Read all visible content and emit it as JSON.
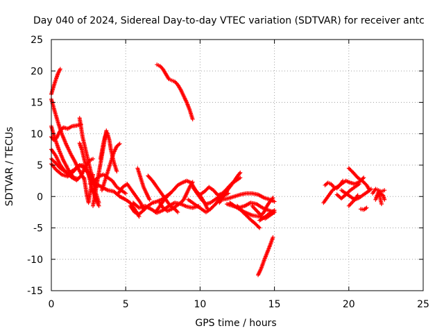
{
  "chart_data": {
    "type": "scatter",
    "title": "Day 040 of 2024, Sidereal Day-to-day VTEC variation (SDTVAR) for receiver antc",
    "xlabel": "GPS time / hours",
    "ylabel": "SDTVAR / TECUs",
    "xlim": [
      0,
      25
    ],
    "ylim": [
      -15,
      25
    ],
    "xticks": [
      0,
      5,
      10,
      15,
      20,
      25
    ],
    "yticks": [
      -15,
      -10,
      -5,
      0,
      5,
      10,
      15,
      20,
      25
    ],
    "xtick_labels": [
      "0",
      "5",
      "10",
      "15",
      "20",
      "25"
    ],
    "ytick_labels": [
      "-15",
      "-10",
      "-5",
      "0",
      "5",
      "10",
      "15",
      "20",
      "25"
    ],
    "grid": true,
    "marker": "plus",
    "color": "#ff0000",
    "series": [
      {
        "name": "track-01",
        "x": [
          0.0,
          0.15,
          0.3,
          0.45,
          0.6
        ],
        "y": [
          16.3,
          17.5,
          18.6,
          19.6,
          20.3
        ]
      },
      {
        "name": "track-02",
        "x": [
          0.0,
          0.2,
          0.45,
          0.7,
          1.0,
          1.3,
          1.6,
          1.8,
          2.0,
          2.2
        ],
        "y": [
          15.5,
          13.8,
          11.8,
          10.0,
          8.3,
          6.8,
          5.5,
          4.5,
          3.6,
          2.8
        ]
      },
      {
        "name": "track-03",
        "x": [
          0.0,
          0.2,
          0.5,
          0.8,
          1.2,
          1.5,
          1.8
        ],
        "y": [
          11.2,
          9.5,
          7.5,
          5.8,
          4.0,
          3.0,
          2.8
        ]
      },
      {
        "name": "track-04",
        "x": [
          0.0,
          0.15,
          0.35,
          0.55,
          0.8,
          1.1,
          1.4,
          1.7,
          2.0
        ],
        "y": [
          9.5,
          9.0,
          9.3,
          10.3,
          11.0,
          10.8,
          11.2,
          11.3,
          11.5
        ]
      },
      {
        "name": "track-05",
        "x": [
          0.0,
          0.3,
          0.6,
          1.0,
          1.4,
          1.7,
          2.0,
          2.3,
          2.6,
          2.8
        ],
        "y": [
          7.5,
          6.5,
          5.0,
          3.8,
          3.0,
          2.6,
          3.3,
          4.8,
          5.8,
          6.0
        ]
      },
      {
        "name": "track-06",
        "x": [
          0.0,
          0.3,
          0.6,
          0.9,
          1.2,
          1.5,
          1.8,
          2.1,
          2.4,
          2.7,
          3.0
        ],
        "y": [
          6.0,
          5.3,
          4.5,
          4.0,
          3.8,
          4.2,
          4.8,
          5.0,
          4.0,
          2.5,
          1.5
        ]
      },
      {
        "name": "track-07",
        "x": [
          0.0,
          0.3,
          0.7,
          1.1,
          1.5,
          1.9,
          2.3,
          2.7,
          3.0
        ],
        "y": [
          5.2,
          4.3,
          3.5,
          3.2,
          4.0,
          5.0,
          4.5,
          3.2,
          2.0
        ]
      },
      {
        "name": "track-08",
        "x": [
          1.9,
          2.0,
          2.1,
          2.25,
          2.4,
          2.55,
          2.7,
          2.85,
          3.0,
          3.2
        ],
        "y": [
          12.5,
          11.0,
          9.5,
          8.0,
          6.5,
          5.0,
          3.5,
          2.0,
          0.5,
          -1.0
        ]
      },
      {
        "name": "track-09",
        "x": [
          1.9,
          2.05,
          2.2,
          2.35,
          2.5,
          2.65,
          2.8,
          3.0,
          3.2
        ],
        "y": [
          8.5,
          7.5,
          6.0,
          4.8,
          3.5,
          2.0,
          0.8,
          -0.5,
          -1.5
        ]
      },
      {
        "name": "track-10",
        "x": [
          2.2,
          2.3,
          2.4,
          2.5,
          2.6,
          2.7,
          2.8
        ],
        "y": [
          3.0,
          1.5,
          0.0,
          -1.0,
          0.5,
          2.0,
          3.5
        ]
      },
      {
        "name": "track-11",
        "x": [
          2.8,
          2.95,
          3.1,
          3.25,
          3.4,
          3.55,
          3.7
        ],
        "y": [
          -1.5,
          0.5,
          2.5,
          4.5,
          6.5,
          8.5,
          10.5
        ]
      },
      {
        "name": "track-12",
        "x": [
          3.3,
          3.4,
          3.5,
          3.6,
          3.75,
          3.9,
          4.0,
          4.2,
          4.4
        ],
        "y": [
          6.0,
          7.2,
          8.5,
          9.5,
          10.2,
          9.0,
          7.5,
          5.5,
          4.0
        ]
      },
      {
        "name": "track-13",
        "x": [
          2.6,
          2.9,
          3.2,
          3.5,
          3.8,
          4.1,
          4.4,
          4.7,
          5.0
        ],
        "y": [
          2.0,
          2.5,
          3.2,
          3.5,
          3.0,
          2.5,
          1.5,
          1.0,
          0.5
        ]
      },
      {
        "name": "track-14",
        "x": [
          3.4,
          3.6,
          3.8,
          4.0,
          4.2,
          4.4,
          4.6
        ],
        "y": [
          1.0,
          2.5,
          4.0,
          5.5,
          7.0,
          8.0,
          8.4
        ]
      },
      {
        "name": "track-15",
        "x": [
          2.2,
          2.6,
          3.0,
          3.4,
          3.8,
          4.2,
          4.6,
          5.0,
          5.3,
          5.6,
          5.9
        ],
        "y": [
          4.5,
          3.5,
          2.0,
          1.5,
          1.0,
          0.8,
          0.0,
          -0.5,
          -1.0,
          -2.0,
          -3.2
        ]
      },
      {
        "name": "track-16",
        "x": [
          4.5,
          4.8,
          5.1,
          5.4,
          5.7,
          6.0,
          6.2
        ],
        "y": [
          0.5,
          1.5,
          2.0,
          1.0,
          0.0,
          -1.0,
          -2.0
        ]
      },
      {
        "name": "track-17",
        "x": [
          5.3,
          5.6,
          5.9,
          6.2,
          6.5,
          6.8,
          7.1,
          7.4,
          7.7,
          8.0
        ],
        "y": [
          -1.5,
          -2.5,
          -2.8,
          -2.2,
          -1.5,
          -1.0,
          -0.8,
          -0.5,
          0.0,
          0.5
        ]
      },
      {
        "name": "track-18",
        "x": [
          5.8,
          6.0,
          6.2,
          6.4,
          6.6
        ],
        "y": [
          4.5,
          3.0,
          1.5,
          0.5,
          -0.5
        ]
      },
      {
        "name": "track-19",
        "x": [
          5.5,
          5.9,
          6.3,
          6.7,
          7.1,
          7.5,
          7.9,
          8.3,
          8.7,
          9.1,
          9.5,
          9.9
        ],
        "y": [
          -1.0,
          -1.8,
          -1.5,
          -2.0,
          -2.6,
          -2.2,
          -1.5,
          -1.0,
          -1.2,
          -1.6,
          -1.8,
          -1.5
        ]
      },
      {
        "name": "track-20",
        "x": [
          6.5,
          6.8,
          7.1,
          7.4,
          7.7,
          8.0,
          8.3,
          8.5
        ],
        "y": [
          3.3,
          2.5,
          1.5,
          0.5,
          -0.5,
          -1.5,
          -2.0,
          -2.5
        ]
      },
      {
        "name": "track-21",
        "x": [
          7.0,
          7.3,
          7.6,
          7.9,
          8.2,
          8.5,
          8.8,
          9.1,
          9.4,
          9.7,
          10.0,
          10.3,
          10.5
        ],
        "y": [
          -2.5,
          -1.5,
          -0.5,
          0.3,
          1.0,
          1.8,
          2.2,
          2.5,
          2.2,
          1.0,
          0.2,
          -1.0,
          -2.0
        ]
      },
      {
        "name": "track-22",
        "x": [
          7.3,
          7.5,
          7.8,
          8.1,
          8.4,
          8.7,
          8.9,
          9.1,
          9.3,
          9.5
        ],
        "y": [
          -1.0,
          -1.8,
          -2.3,
          -2.0,
          -1.5,
          -1.0,
          -0.5,
          0.5,
          1.5,
          2.3
        ]
      },
      {
        "name": "track-23",
        "x": [
          7.1,
          7.3,
          7.5,
          7.7,
          7.9,
          8.1,
          8.3,
          8.5,
          8.7,
          8.9,
          9.1,
          9.3,
          9.5
        ],
        "y": [
          21.0,
          20.8,
          20.3,
          19.5,
          18.7,
          18.5,
          18.3,
          17.8,
          17.0,
          16.0,
          15.0,
          13.8,
          12.3
        ]
      },
      {
        "name": "track-24",
        "x": [
          9.2,
          9.5,
          9.8,
          10.1,
          10.4,
          10.7,
          11.0,
          11.3,
          11.6,
          11.9
        ],
        "y": [
          -0.5,
          -1.0,
          -1.5,
          -2.0,
          -2.5,
          -2.0,
          -1.3,
          -0.5,
          0.2,
          0.5
        ]
      },
      {
        "name": "track-25",
        "x": [
          9.5,
          9.8,
          10.1,
          10.4,
          10.7,
          11.0,
          11.3,
          11.6
        ],
        "y": [
          1.5,
          0.5,
          -0.5,
          -1.2,
          -1.0,
          -0.5,
          0.0,
          0.5
        ]
      },
      {
        "name": "track-26",
        "x": [
          10.0,
          10.3,
          10.6,
          10.9,
          11.2,
          11.5,
          11.8,
          12.1,
          12.4,
          12.7
        ],
        "y": [
          0.3,
          0.8,
          1.5,
          1.0,
          0.2,
          0.5,
          1.2,
          2.0,
          2.5,
          3.0
        ]
      },
      {
        "name": "track-27",
        "x": [
          11.3,
          11.5,
          11.7,
          11.9,
          12.1,
          12.3,
          12.5,
          12.7
        ],
        "y": [
          -1.0,
          -0.2,
          0.5,
          1.2,
          1.8,
          2.5,
          3.2,
          3.8
        ]
      },
      {
        "name": "track-28",
        "x": [
          11.5,
          11.9,
          12.3,
          12.7,
          13.1,
          13.5,
          13.9,
          14.3,
          14.7,
          15.0
        ],
        "y": [
          -0.5,
          -0.3,
          0.0,
          0.3,
          0.5,
          0.5,
          0.3,
          -0.2,
          -0.5,
          -0.8
        ]
      },
      {
        "name": "track-29",
        "x": [
          11.8,
          12.2,
          12.6,
          13.0,
          13.4,
          13.8,
          14.2,
          14.6,
          15.0
        ],
        "y": [
          -1.2,
          -1.5,
          -1.8,
          -1.5,
          -1.0,
          -1.2,
          -1.8,
          -2.2,
          -2.5
        ]
      },
      {
        "name": "track-30",
        "x": [
          12.0,
          12.5,
          13.0,
          13.5,
          14.0,
          14.4,
          14.7,
          15.0
        ],
        "y": [
          -1.0,
          -1.8,
          -2.5,
          -3.0,
          -3.2,
          -3.5,
          -3.0,
          -2.5
        ]
      },
      {
        "name": "track-31",
        "x": [
          12.5,
          12.8,
          13.1,
          13.4,
          13.7,
          14.0
        ],
        "y": [
          -1.5,
          -2.3,
          -3.0,
          -3.7,
          -4.3,
          -5.0
        ]
      },
      {
        "name": "track-32",
        "x": [
          13.5,
          13.7,
          13.9,
          14.1,
          14.3,
          14.5,
          14.7,
          14.9
        ],
        "y": [
          -1.5,
          -2.0,
          -2.5,
          -3.0,
          -2.5,
          -1.5,
          -0.8,
          -0.2
        ]
      },
      {
        "name": "track-33",
        "x": [
          14.0,
          14.2,
          14.4,
          14.6,
          14.8,
          15.0
        ],
        "y": [
          -3.8,
          -3.5,
          -3.2,
          -2.8,
          -2.5,
          -2.2
        ]
      },
      {
        "name": "track-34",
        "x": [
          13.9,
          14.1,
          14.3,
          14.5,
          14.7,
          14.9
        ],
        "y": [
          -12.5,
          -11.5,
          -10.2,
          -9.0,
          -7.8,
          -6.5
        ]
      },
      {
        "name": "track-35",
        "x": [
          18.4,
          18.6,
          18.8,
          19.0,
          19.2,
          19.4,
          19.6
        ],
        "y": [
          1.8,
          2.2,
          2.0,
          1.5,
          1.3,
          1.8,
          2.5
        ]
      },
      {
        "name": "track-36",
        "x": [
          18.3,
          18.6,
          18.9,
          19.2,
          19.5,
          19.8,
          20.1,
          20.4,
          20.7,
          21.0
        ],
        "y": [
          -1.0,
          0.0,
          1.0,
          1.5,
          2.0,
          2.5,
          2.2,
          2.0,
          2.3,
          3.0
        ]
      },
      {
        "name": "track-37",
        "x": [
          19.2,
          19.5,
          19.8,
          20.1,
          20.4,
          20.7
        ],
        "y": [
          0.3,
          -0.3,
          0.3,
          1.0,
          1.5,
          2.0
        ]
      },
      {
        "name": "track-38",
        "x": [
          19.5,
          19.8,
          20.1,
          20.4,
          20.7,
          21.0,
          21.3,
          21.5
        ],
        "y": [
          1.0,
          0.5,
          0.0,
          -0.5,
          -0.2,
          0.3,
          0.8,
          1.2
        ]
      },
      {
        "name": "track-39",
        "x": [
          20.0,
          20.3,
          20.6,
          20.9,
          21.2,
          21.4
        ],
        "y": [
          4.5,
          3.8,
          3.0,
          2.5,
          1.8,
          1.0
        ]
      },
      {
        "name": "track-40",
        "x": [
          20.0,
          20.2,
          20.4,
          20.6
        ],
        "y": [
          -1.5,
          -1.0,
          -0.5,
          0.2
        ]
      },
      {
        "name": "track-41",
        "x": [
          20.8,
          21.0,
          21.2
        ],
        "y": [
          -2.0,
          -2.1,
          -1.8
        ]
      },
      {
        "name": "track-42",
        "x": [
          21.6,
          21.8,
          22.0,
          22.2,
          22.4
        ],
        "y": [
          0.5,
          1.2,
          1.0,
          0.8,
          1.0
        ]
      },
      {
        "name": "track-43",
        "x": [
          21.8,
          21.9,
          22.0,
          22.1,
          22.2
        ],
        "y": [
          -0.5,
          0.2,
          0.8,
          -0.2,
          -1.2
        ]
      },
      {
        "name": "track-44",
        "x": [
          21.9,
          22.1,
          22.3,
          22.4
        ],
        "y": [
          0.0,
          0.5,
          0.2,
          -0.5
        ]
      }
    ]
  }
}
